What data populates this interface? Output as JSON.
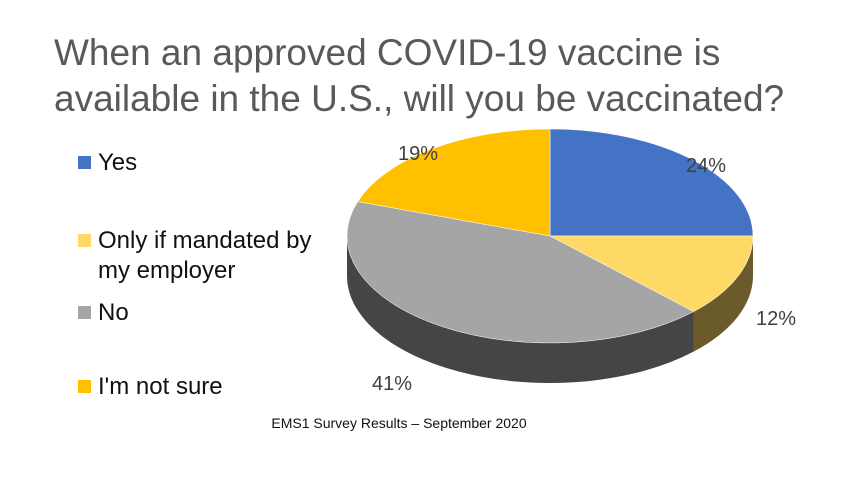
{
  "chart_data": {
    "type": "pie",
    "title": "When an approved COVID-19 vaccine is available in the U.S., will you be vaccinated?",
    "source": "EMS1 Survey Results – September 2020",
    "legend_position": "left",
    "slices": [
      {
        "label": "Yes",
        "value": 24,
        "display": "24%",
        "color": "#4472C4"
      },
      {
        "label": "Only if mandated by my employer",
        "value": 12,
        "display": "12%",
        "color": "#FFD966"
      },
      {
        "label": "No",
        "value": 41,
        "display": "41%",
        "color": "#A5A5A5"
      },
      {
        "label": "I'm not sure",
        "value": 19,
        "display": "19%",
        "color": "#FFC000"
      }
    ]
  }
}
